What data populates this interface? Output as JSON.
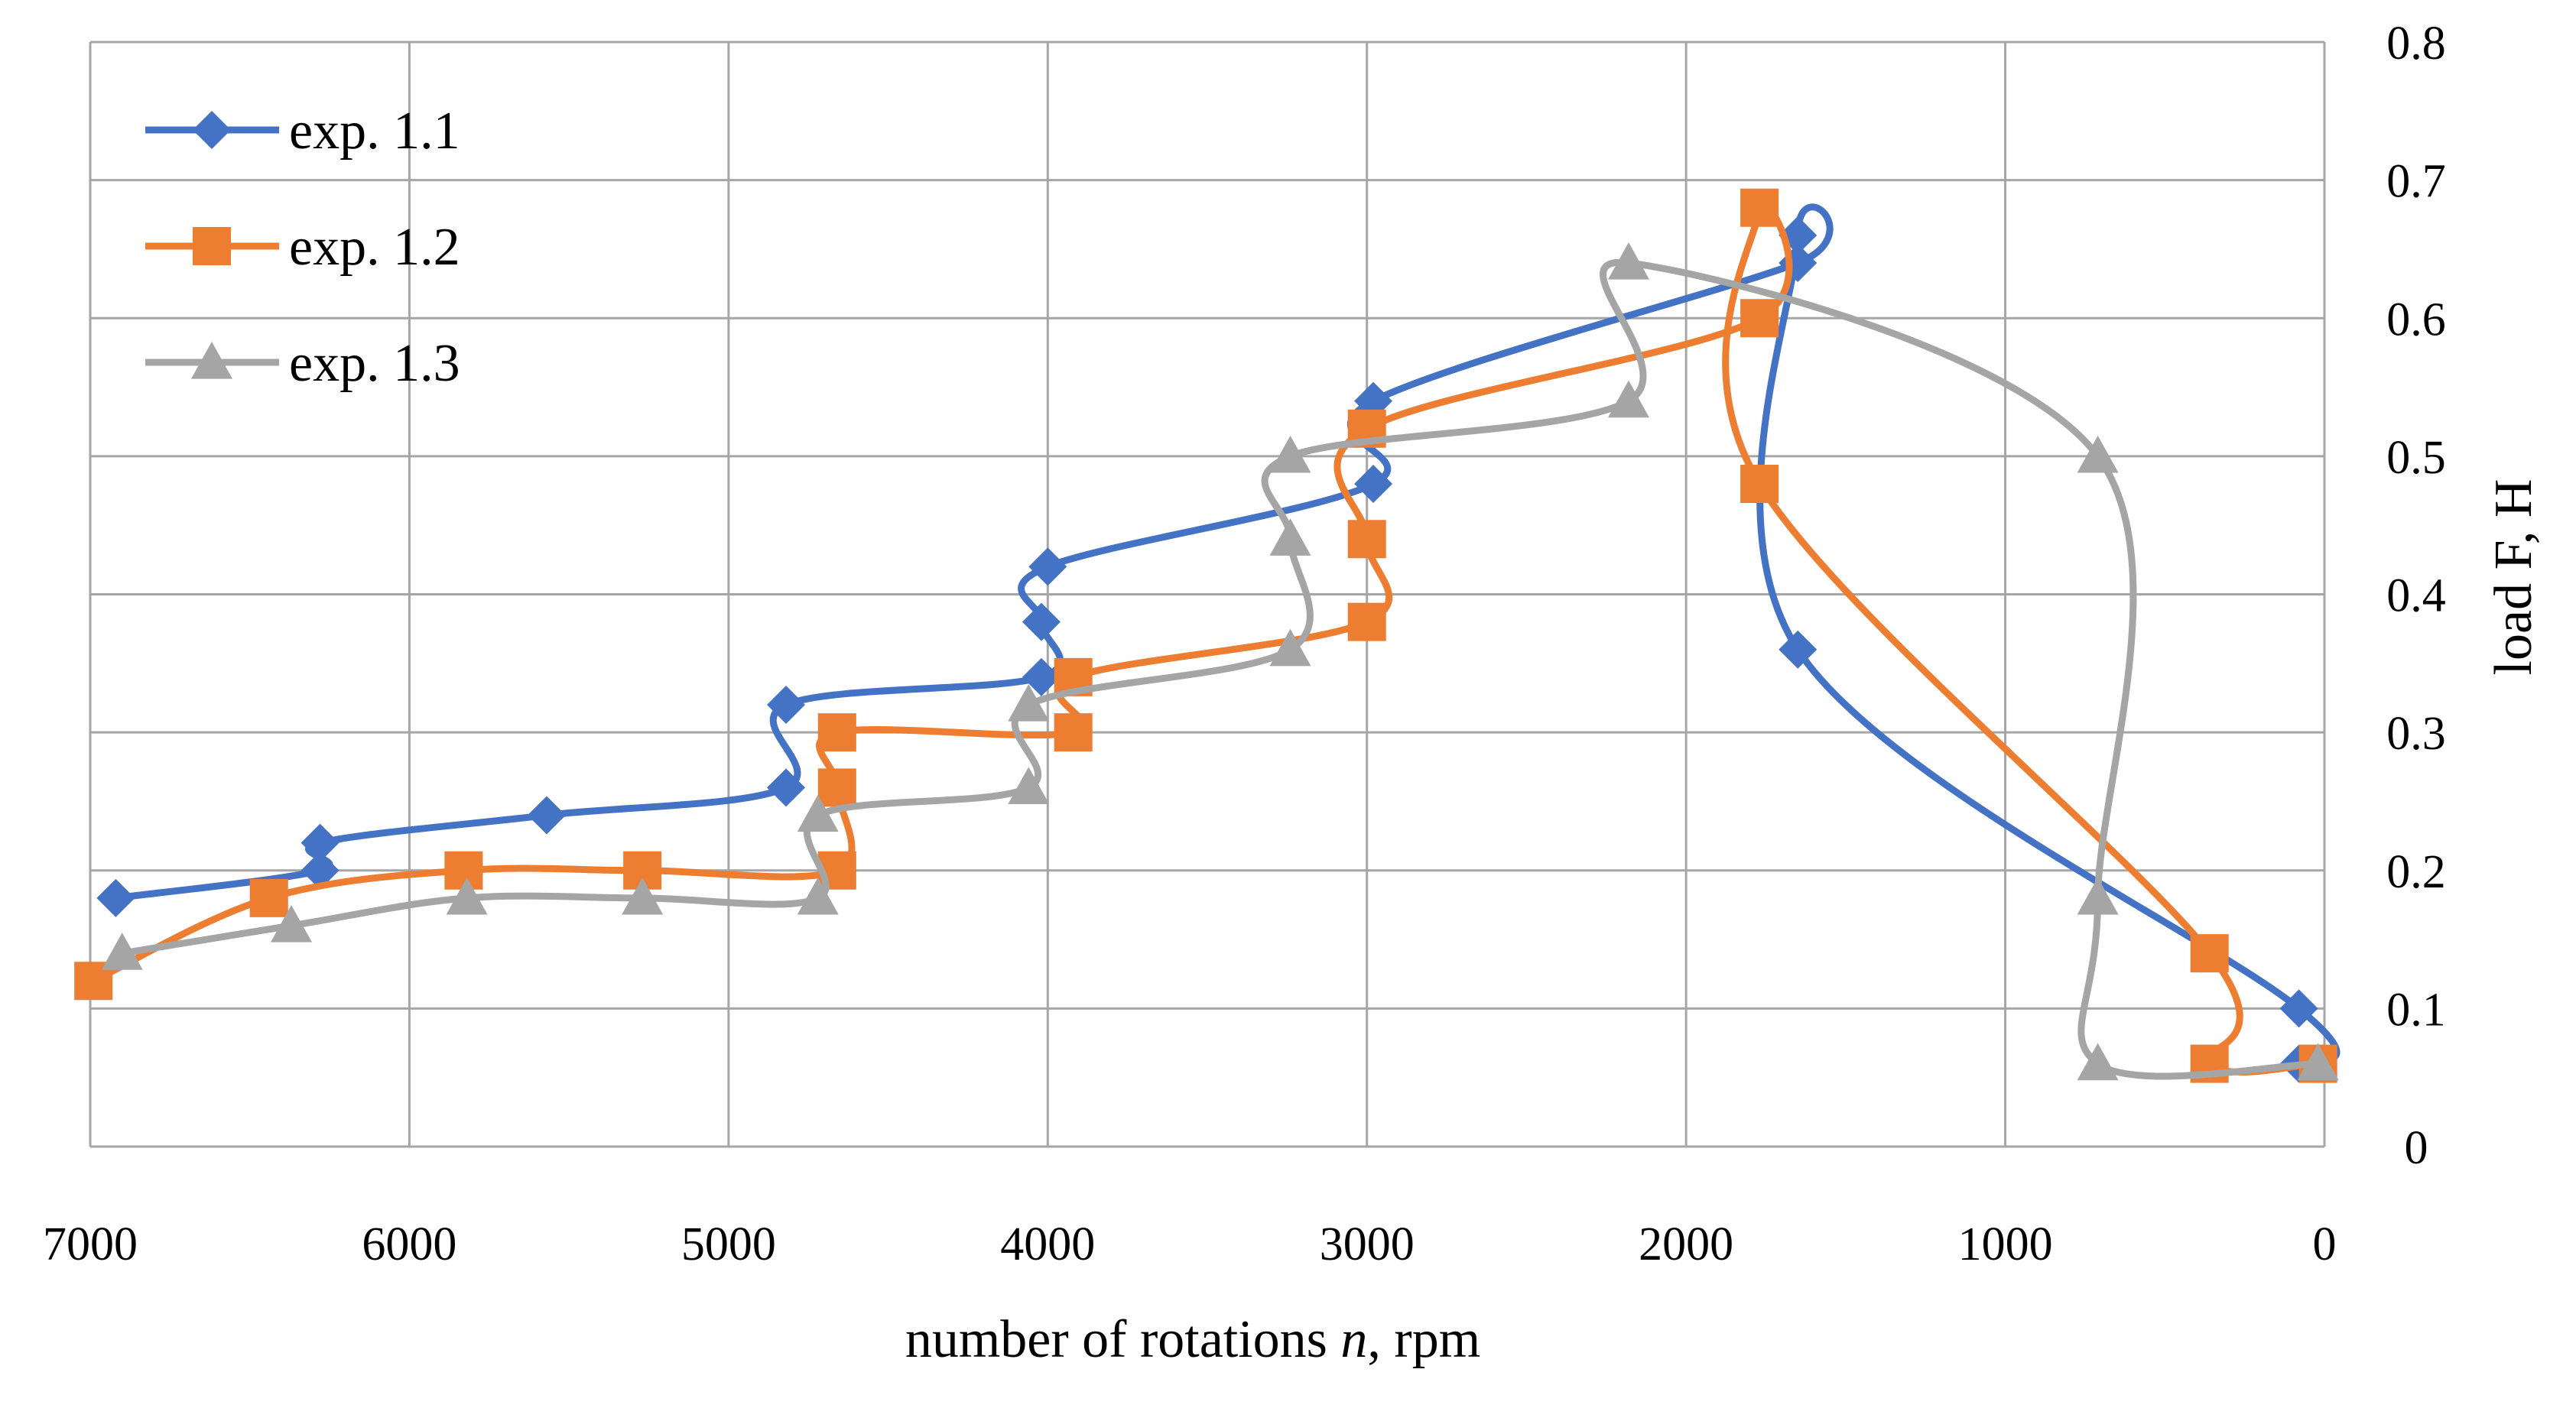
{
  "chart_data": {
    "type": "line",
    "title": "",
    "xlabel": "number of rotations n, rpm",
    "xlabel_parts": {
      "prefix": "number of rotations ",
      "var": "n",
      "suffix": ", rpm"
    },
    "ylabel": "load F, H",
    "xlim": [
      7000,
      0
    ],
    "ylim": [
      0,
      0.8
    ],
    "x_ticks": [
      7000,
      6000,
      5000,
      4000,
      3000,
      2000,
      1000,
      0
    ],
    "y_ticks": [
      0,
      0.1,
      0.2,
      0.3,
      0.4,
      0.5,
      0.6,
      0.7,
      0.8
    ],
    "grid": true,
    "legend_position": "top-left",
    "series": [
      {
        "name": "exp. 1.1",
        "color": "#4472C4",
        "marker": "diamond",
        "points": [
          [
            6920,
            0.18
          ],
          [
            6280,
            0.2
          ],
          [
            6280,
            0.22
          ],
          [
            5570,
            0.24
          ],
          [
            4820,
            0.26
          ],
          [
            4820,
            0.32
          ],
          [
            4020,
            0.34
          ],
          [
            4020,
            0.38
          ],
          [
            4000,
            0.42
          ],
          [
            2980,
            0.48
          ],
          [
            2980,
            0.54
          ],
          [
            1650,
            0.64
          ],
          [
            1650,
            0.66
          ],
          [
            1650,
            0.36
          ],
          [
            80,
            0.1
          ],
          [
            80,
            0.06
          ]
        ]
      },
      {
        "name": "exp. 1.2",
        "color": "#ED7D31",
        "marker": "square",
        "points": [
          [
            6990,
            0.12
          ],
          [
            6440,
            0.18
          ],
          [
            5830,
            0.2
          ],
          [
            5270,
            0.2
          ],
          [
            4660,
            0.2
          ],
          [
            4660,
            0.26
          ],
          [
            4660,
            0.3
          ],
          [
            3920,
            0.3
          ],
          [
            3920,
            0.34
          ],
          [
            3000,
            0.38
          ],
          [
            3000,
            0.44
          ],
          [
            3000,
            0.52
          ],
          [
            1770,
            0.6
          ],
          [
            1770,
            0.68
          ],
          [
            1770,
            0.48
          ],
          [
            360,
            0.14
          ],
          [
            360,
            0.06
          ],
          [
            20,
            0.06
          ]
        ]
      },
      {
        "name": "exp. 1.3",
        "color": "#A5A5A5",
        "marker": "triangle",
        "points": [
          [
            6900,
            0.14
          ],
          [
            6370,
            0.16
          ],
          [
            5820,
            0.18
          ],
          [
            5270,
            0.18
          ],
          [
            4720,
            0.18
          ],
          [
            4720,
            0.24
          ],
          [
            4060,
            0.26
          ],
          [
            4060,
            0.32
          ],
          [
            3240,
            0.36
          ],
          [
            3240,
            0.44
          ],
          [
            3240,
            0.5
          ],
          [
            2180,
            0.54
          ],
          [
            2180,
            0.64
          ],
          [
            710,
            0.5
          ],
          [
            710,
            0.18
          ],
          [
            710,
            0.06
          ],
          [
            20,
            0.06
          ]
        ]
      }
    ]
  }
}
